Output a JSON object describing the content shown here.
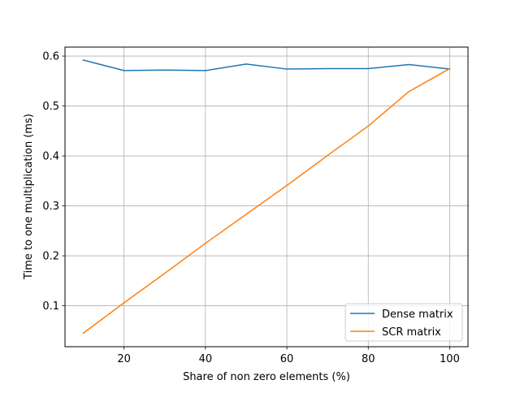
{
  "chart_data": {
    "type": "line",
    "title": "",
    "xlabel": "Share of non zero elements (%)",
    "ylabel": "Time to one multiplication (ms)",
    "xlim": [
      5.5,
      104.5
    ],
    "ylim": [
      0.018,
      0.618
    ],
    "xticks": [
      20,
      40,
      60,
      80,
      100
    ],
    "xtick_labels": [
      "20",
      "40",
      "60",
      "80",
      "100"
    ],
    "yticks": [
      0.1,
      0.2,
      0.3,
      0.4,
      0.5,
      0.6
    ],
    "ytick_labels": [
      "0.1",
      "0.2",
      "0.3",
      "0.4",
      "0.5",
      "0.6"
    ],
    "grid": true,
    "legend_position": "lower-right",
    "x": [
      10,
      20,
      30,
      40,
      50,
      60,
      70,
      80,
      90,
      100
    ],
    "series": [
      {
        "name": "Dense matrix",
        "color": "#1f77b4",
        "values": [
          0.592,
          0.571,
          0.572,
          0.571,
          0.584,
          0.574,
          0.575,
          0.575,
          0.583,
          0.574
        ]
      },
      {
        "name": "SCR matrix",
        "color": "#ff7f0e",
        "values": [
          0.045,
          0.106,
          0.165,
          0.225,
          0.283,
          0.341,
          0.401,
          0.46,
          0.529,
          0.575
        ]
      }
    ]
  }
}
